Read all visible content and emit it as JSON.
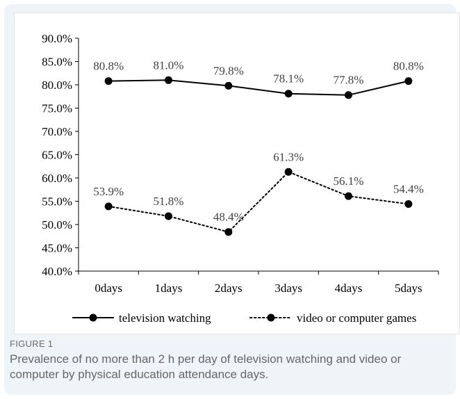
{
  "figure": {
    "label": "FIGURE 1",
    "caption": "Prevalence of no more than 2 h per day of television watching and video or computer by physical education attendance days."
  },
  "chart_data": {
    "type": "line",
    "categories": [
      "0days",
      "1days",
      "2days",
      "3days",
      "4days",
      "5days"
    ],
    "ylim": [
      40.0,
      90.0
    ],
    "yticks": [
      "40.0%",
      "45.0%",
      "50.0%",
      "55.0%",
      "60.0%",
      "65.0%",
      "70.0%",
      "75.0%",
      "80.0%",
      "85.0%",
      "90.0%"
    ],
    "grid": false,
    "legend_position": "bottom",
    "series": [
      {
        "name": "television watching",
        "values": [
          80.8,
          81.0,
          79.8,
          78.1,
          77.8,
          80.8
        ],
        "labels": [
          "80.8%",
          "81.0%",
          "79.8%",
          "78.1%",
          "77.8%",
          "80.8%"
        ],
        "line_style": "solid",
        "color": "#000000"
      },
      {
        "name": "video or computer games",
        "values": [
          53.9,
          51.8,
          48.4,
          61.3,
          56.1,
          54.4
        ],
        "labels": [
          "53.9%",
          "51.8%",
          "48.4%",
          "61.3%",
          "56.1%",
          "54.4%"
        ],
        "line_style": "dotted",
        "color": "#000000"
      }
    ]
  }
}
